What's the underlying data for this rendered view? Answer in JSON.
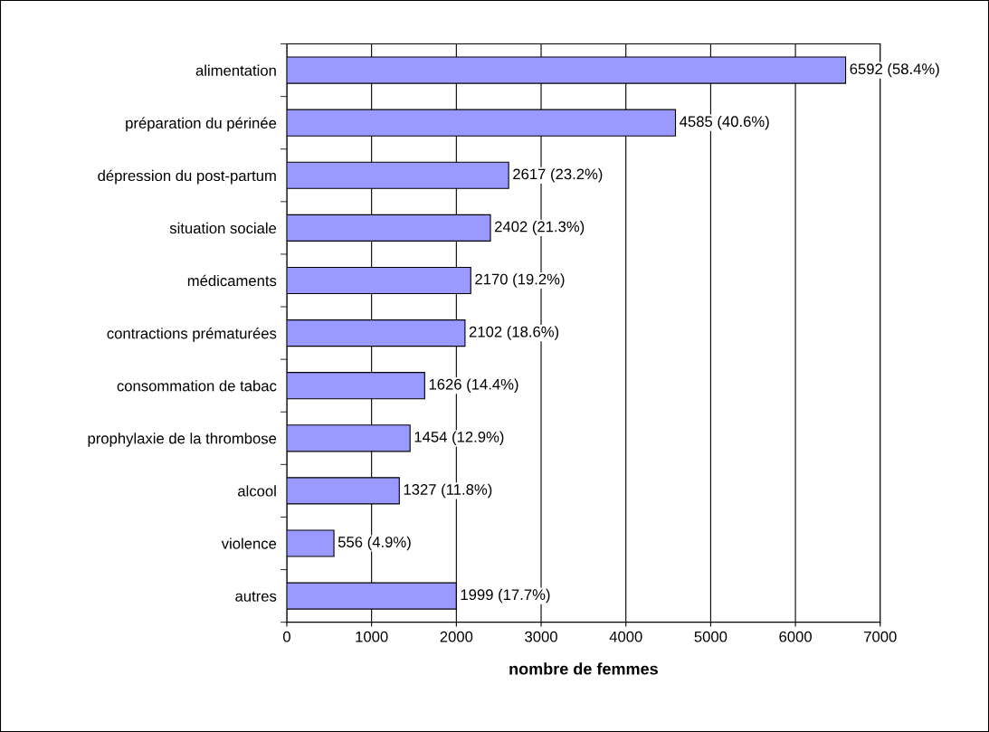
{
  "chart_data": {
    "type": "bar",
    "orientation": "horizontal",
    "categories": [
      "alimentation",
      "préparation du périnée",
      "dépression du post-partum",
      "situation sociale",
      "médicaments",
      "contractions prématurées",
      "consommation de tabac",
      "prophylaxie de la thrombose",
      "alcool",
      "violence",
      "autres"
    ],
    "values": [
      6592,
      4585,
      2617,
      2402,
      2170,
      2102,
      1626,
      1454,
      1327,
      556,
      1999
    ],
    "value_labels": [
      "6592 (58.4%)",
      "4585 (40.6%)",
      "2617 (23.2%)",
      "2402 (21.3%)",
      "2170 (19.2%)",
      "2102 (18.6%)",
      "1626 (14.4%)",
      "1454 (12.9%)",
      "1327 (11.8%)",
      "556 (4.9%)",
      "1999 (17.7%)"
    ],
    "color": "#9999ff",
    "xlabel": "nombre de femmes",
    "xlim": [
      0,
      7000
    ],
    "xticks": [
      0,
      1000,
      2000,
      3000,
      4000,
      5000,
      6000,
      7000
    ],
    "grid": "x",
    "legend": false
  }
}
